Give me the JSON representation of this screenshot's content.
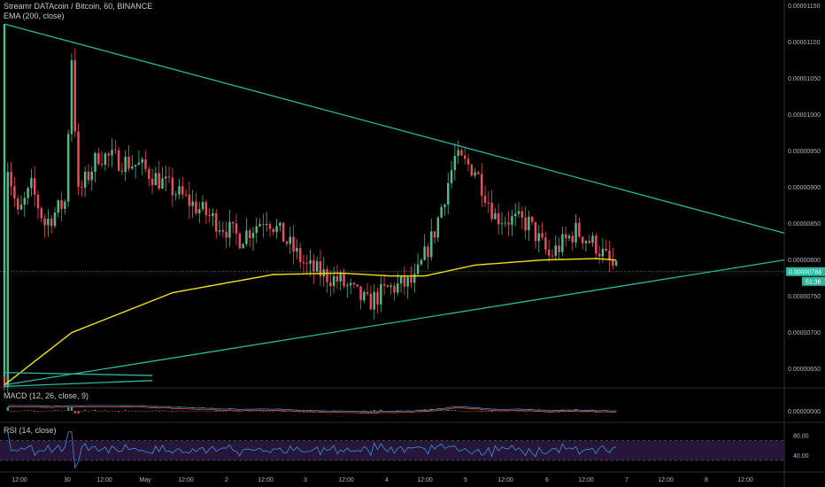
{
  "header": {
    "symbol": "Streamr DATAcoin / Bitcoin, 60, BINANCE",
    "ema_label": "EMA (200, close)",
    "macd_label": "MACD (12, 26, close, 9)",
    "rsi_label": "RSI (14, close)"
  },
  "price_tag": {
    "value": "0.00000784",
    "time": "51:36"
  },
  "colors": {
    "background": "#000000",
    "up": "#53b987",
    "down": "#eb4d5c",
    "ema": "#f5e11b",
    "trendline": "#2bb7a0",
    "price_line": "#2bb7a0",
    "rsi": "#3a86c8",
    "rsi_band": "#2a1840",
    "macd_line": "#4a8fd0",
    "signal_line": "#e05a3a"
  },
  "chart_data": {
    "type": "candlestick",
    "title": "Streamr DATAcoin / Bitcoin, 60, BINANCE",
    "y_ticks": [
      "0.00001150",
      "0.00001100",
      "0.00001050",
      "0.00001000",
      "0.00000950",
      "0.00000900",
      "0.00000850",
      "0.00000800",
      "0.00000750",
      "0.00000700",
      "0.00000650"
    ],
    "y_range": [
      6.24e-06,
      1.158e-05
    ],
    "x_ticks": [
      "12:00",
      "30",
      "12:00",
      "May",
      "12:00",
      "2",
      "12:00",
      "3",
      "12:00",
      "4",
      "12:00",
      "5",
      "12:00",
      "6",
      "12:00",
      "7",
      "12:00",
      "8",
      "12:00"
    ],
    "last_price": 7.84e-06,
    "macd_y_ticks": [
      "0.00000000"
    ],
    "rsi_y_ticks": [
      "80.00",
      "40.00"
    ],
    "rsi_band": [
      30,
      70
    ],
    "price_path_keypoints": [
      {
        "i": 0,
        "p": 6.4e-06
      },
      {
        "i": 1,
        "p": 9.3e-06
      },
      {
        "i": 4,
        "p": 8.6e-06
      },
      {
        "i": 8,
        "p": 9e-06
      },
      {
        "i": 12,
        "p": 8.5e-06
      },
      {
        "i": 18,
        "p": 8.8e-06
      },
      {
        "i": 20,
        "p": 1.08e-05
      },
      {
        "i": 22,
        "p": 8.9e-06
      },
      {
        "i": 28,
        "p": 9.45e-06
      },
      {
        "i": 40,
        "p": 9.3e-06
      },
      {
        "i": 55,
        "p": 8.8e-06
      },
      {
        "i": 70,
        "p": 8.3e-06
      },
      {
        "i": 78,
        "p": 8.6e-06
      },
      {
        "i": 90,
        "p": 7.9e-06
      },
      {
        "i": 100,
        "p": 7.7e-06
      },
      {
        "i": 108,
        "p": 7.4e-06
      },
      {
        "i": 114,
        "p": 7.6e-06
      },
      {
        "i": 122,
        "p": 7.7e-06
      },
      {
        "i": 128,
        "p": 8.4e-06
      },
      {
        "i": 134,
        "p": 9.4e-06
      },
      {
        "i": 140,
        "p": 9.25e-06
      },
      {
        "i": 146,
        "p": 8.6e-06
      },
      {
        "i": 156,
        "p": 8.5e-06
      },
      {
        "i": 162,
        "p": 8.05e-06
      },
      {
        "i": 170,
        "p": 8.4e-06
      },
      {
        "i": 176,
        "p": 8.2e-06
      },
      {
        "i": 182,
        "p": 7.84e-06
      }
    ],
    "ema_keypoints": [
      {
        "i": 0,
        "p": 6.28e-06
      },
      {
        "i": 20,
        "p": 7e-06
      },
      {
        "i": 50,
        "p": 7.55e-06
      },
      {
        "i": 80,
        "p": 7.8e-06
      },
      {
        "i": 100,
        "p": 7.82e-06
      },
      {
        "i": 115,
        "p": 7.78e-06
      },
      {
        "i": 125,
        "p": 7.78e-06
      },
      {
        "i": 140,
        "p": 7.93e-06
      },
      {
        "i": 160,
        "p": 8e-06
      },
      {
        "i": 176,
        "p": 8.02e-06
      },
      {
        "i": 182,
        "p": 8e-06
      }
    ],
    "trendlines": [
      {
        "from": {
          "i": 0,
          "p": 1.125e-05
        },
        "to": {
          "i": 232,
          "p": 8.37e-06
        }
      },
      {
        "from": {
          "i": 0,
          "p": 6.28e-06
        },
        "to": {
          "i": 232,
          "p": 8e-06
        }
      },
      {
        "from": {
          "i": 0,
          "p": 6.45e-06
        },
        "to": {
          "i": 44,
          "p": 6.41e-06
        }
      },
      {
        "from": {
          "i": 0,
          "p": 6.26e-06
        },
        "to": {
          "i": 44,
          "p": 6.34e-06
        }
      }
    ]
  }
}
